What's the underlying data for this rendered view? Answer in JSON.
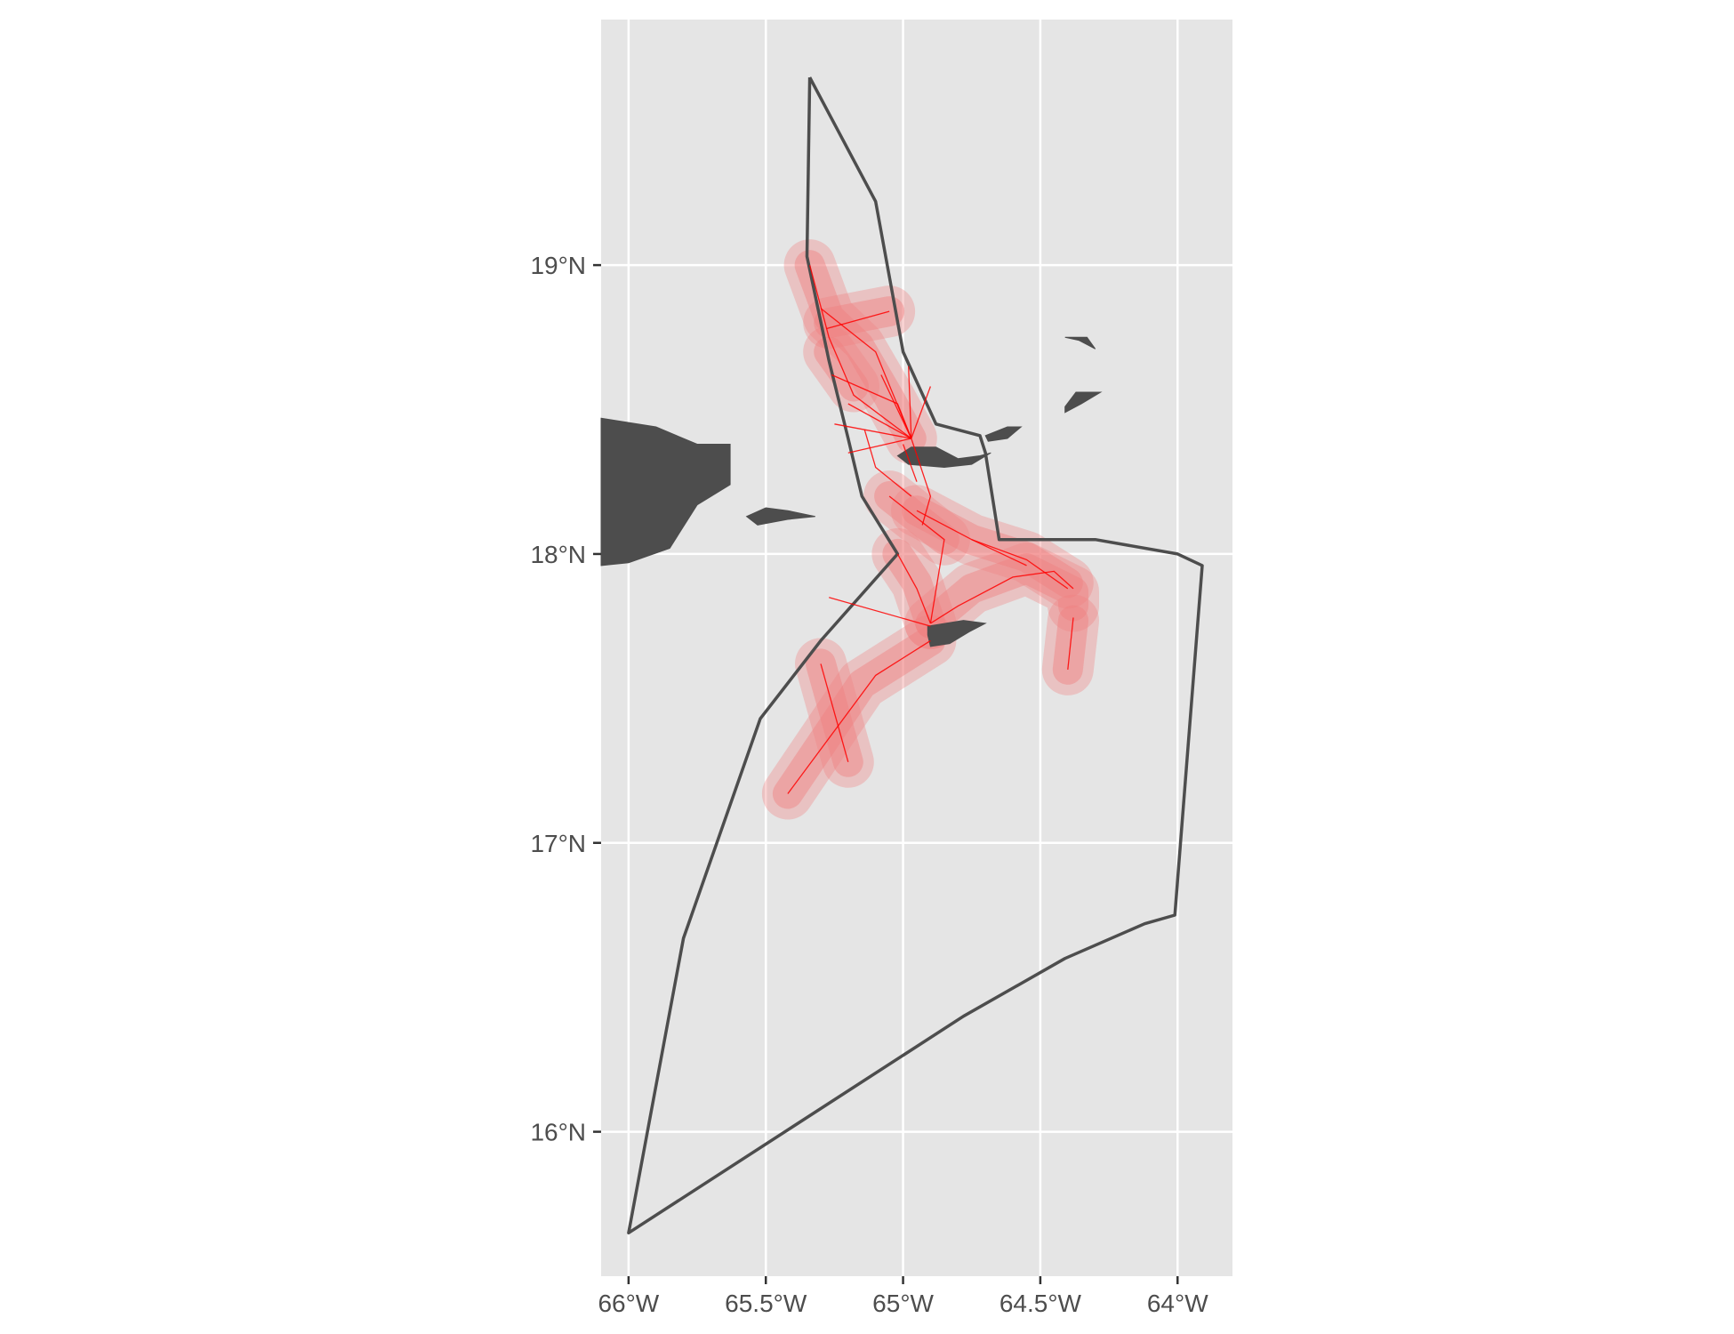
{
  "map": {
    "panel_background": "#e5e5e5",
    "grid_color": "#ffffff",
    "land_color": "#4d4d4d",
    "boundary_color": "#4d4d4d",
    "route_color": "#ff0000",
    "buffer_color": "#f08080",
    "x_ticks": [
      {
        "value": -66.0,
        "label": "66°W"
      },
      {
        "value": -65.5,
        "label": "65.5°W"
      },
      {
        "value": -65.0,
        "label": "65°W"
      },
      {
        "value": -64.5,
        "label": "64.5°W"
      },
      {
        "value": -64.0,
        "label": "64°W"
      }
    ],
    "y_ticks": [
      {
        "value": 16,
        "label": "16°N"
      },
      {
        "value": 17,
        "label": "17°N"
      },
      {
        "value": 18,
        "label": "18°N"
      },
      {
        "value": 19,
        "label": "19°N"
      }
    ],
    "xlim": [
      -66.1,
      -63.8
    ],
    "ylim": [
      15.5,
      19.85
    ],
    "boundary": [
      [
        -65.34,
        19.65
      ],
      [
        -65.1,
        19.22
      ],
      [
        -65.0,
        18.7
      ],
      [
        -64.88,
        18.45
      ],
      [
        -64.72,
        18.41
      ],
      [
        -64.7,
        18.35
      ],
      [
        -64.65,
        18.05
      ],
      [
        -64.3,
        18.05
      ],
      [
        -64.0,
        18.0
      ],
      [
        -63.91,
        17.96
      ],
      [
        -64.01,
        16.75
      ],
      [
        -64.12,
        16.72
      ],
      [
        -64.41,
        16.6
      ],
      [
        -64.78,
        16.4
      ],
      [
        -66.0,
        15.65
      ],
      [
        -65.8,
        16.67
      ],
      [
        -65.52,
        17.43
      ],
      [
        -65.3,
        17.7
      ],
      [
        -65.02,
        18.0
      ],
      [
        -65.15,
        18.2
      ],
      [
        -65.2,
        18.4
      ],
      [
        -65.27,
        18.67
      ],
      [
        -65.35,
        19.03
      ],
      [
        -65.34,
        19.65
      ]
    ],
    "land": [
      [
        [
          -66.1,
          18.47
        ],
        [
          -65.9,
          18.44
        ],
        [
          -65.75,
          18.38
        ],
        [
          -65.63,
          18.38
        ],
        [
          -65.63,
          18.24
        ],
        [
          -65.75,
          18.17
        ],
        [
          -65.85,
          18.02
        ],
        [
          -66.0,
          17.97
        ],
        [
          -66.1,
          17.96
        ]
      ],
      [
        [
          -65.57,
          18.13
        ],
        [
          -65.5,
          18.16
        ],
        [
          -65.42,
          18.15
        ],
        [
          -65.32,
          18.13
        ],
        [
          -65.42,
          18.12
        ],
        [
          -65.53,
          18.1
        ]
      ],
      [
        [
          -64.97,
          18.37
        ],
        [
          -64.88,
          18.37
        ],
        [
          -64.8,
          18.33
        ],
        [
          -64.72,
          18.34
        ],
        [
          -64.68,
          18.35
        ],
        [
          -64.75,
          18.31
        ],
        [
          -64.85,
          18.3
        ],
        [
          -64.98,
          18.31
        ],
        [
          -65.02,
          18.34
        ]
      ],
      [
        [
          -64.91,
          17.75
        ],
        [
          -64.78,
          17.77
        ],
        [
          -64.7,
          17.76
        ],
        [
          -64.76,
          17.73
        ],
        [
          -64.83,
          17.69
        ],
        [
          -64.9,
          17.68
        ],
        [
          -64.91,
          17.72
        ]
      ],
      [
        [
          -64.7,
          18.41
        ],
        [
          -64.62,
          18.44
        ],
        [
          -64.57,
          18.44
        ],
        [
          -64.62,
          18.4
        ],
        [
          -64.69,
          18.39
        ]
      ],
      [
        [
          -64.41,
          18.51
        ],
        [
          -64.37,
          18.56
        ],
        [
          -64.28,
          18.56
        ],
        [
          -64.35,
          18.52
        ],
        [
          -64.41,
          18.49
        ]
      ],
      [
        [
          -64.41,
          18.75
        ],
        [
          -64.33,
          18.75
        ],
        [
          -64.3,
          18.71
        ],
        [
          -64.36,
          18.74
        ]
      ]
    ],
    "buffers": [
      [
        [
          -65.34,
          19.0
        ],
        [
          -65.27,
          18.82
        ],
        [
          -65.16,
          18.72
        ],
        [
          -65.05,
          18.54
        ],
        [
          -64.97,
          18.4
        ]
      ],
      [
        [
          -65.27,
          18.8
        ],
        [
          -65.05,
          18.84
        ]
      ],
      [
        [
          -65.27,
          18.7
        ],
        [
          -65.18,
          18.58
        ]
      ],
      [
        [
          -65.02,
          18.0
        ],
        [
          -64.95,
          17.9
        ],
        [
          -64.9,
          17.76
        ]
      ],
      [
        [
          -64.9,
          17.76
        ],
        [
          -64.75,
          17.88
        ],
        [
          -64.55,
          17.95
        ],
        [
          -64.38,
          17.87
        ],
        [
          -64.38,
          17.82
        ]
      ],
      [
        [
          -64.95,
          18.15
        ],
        [
          -64.75,
          18.05
        ],
        [
          -64.55,
          17.99
        ],
        [
          -64.4,
          17.9
        ]
      ],
      [
        [
          -65.05,
          18.2
        ],
        [
          -64.85,
          18.05
        ]
      ],
      [
        [
          -64.9,
          17.7
        ],
        [
          -65.15,
          17.55
        ],
        [
          -65.42,
          17.17
        ]
      ],
      [
        [
          -65.3,
          17.62
        ],
        [
          -65.2,
          17.28
        ]
      ],
      [
        [
          -64.38,
          17.77
        ],
        [
          -64.4,
          17.6
        ]
      ]
    ],
    "routes": [
      [
        [
          -65.34,
          19.0
        ],
        [
          -65.27,
          18.75
        ],
        [
          -65.18,
          18.55
        ],
        [
          -64.97,
          18.4
        ]
      ],
      [
        [
          -65.28,
          18.78
        ],
        [
          -65.05,
          18.84
        ]
      ],
      [
        [
          -65.3,
          18.85
        ],
        [
          -65.1,
          18.7
        ],
        [
          -64.97,
          18.4
        ]
      ],
      [
        [
          -65.26,
          18.62
        ],
        [
          -65.02,
          18.52
        ],
        [
          -64.97,
          18.4
        ]
      ],
      [
        [
          -65.2,
          18.52
        ],
        [
          -64.97,
          18.4
        ]
      ],
      [
        [
          -65.25,
          18.45
        ],
        [
          -64.97,
          18.4
        ]
      ],
      [
        [
          -65.2,
          18.35
        ],
        [
          -64.97,
          18.4
        ]
      ],
      [
        [
          -65.08,
          18.62
        ],
        [
          -64.97,
          18.4
        ]
      ],
      [
        [
          -64.98,
          18.65
        ],
        [
          -64.97,
          18.4
        ]
      ],
      [
        [
          -64.9,
          18.58
        ],
        [
          -64.97,
          18.4
        ]
      ],
      [
        [
          -64.97,
          18.4
        ],
        [
          -64.9,
          18.2
        ],
        [
          -64.93,
          18.1
        ]
      ],
      [
        [
          -65.0,
          18.38
        ],
        [
          -64.95,
          18.25
        ]
      ],
      [
        [
          -65.14,
          18.43
        ],
        [
          -65.1,
          18.3
        ],
        [
          -64.97,
          18.2
        ]
      ],
      [
        [
          -65.02,
          18.0
        ],
        [
          -64.95,
          17.88
        ],
        [
          -64.9,
          17.76
        ]
      ],
      [
        [
          -65.05,
          18.2
        ],
        [
          -64.85,
          18.05
        ],
        [
          -64.9,
          17.76
        ]
      ],
      [
        [
          -64.9,
          17.76
        ],
        [
          -64.8,
          17.82
        ],
        [
          -64.6,
          17.92
        ],
        [
          -64.45,
          17.94
        ],
        [
          -64.38,
          17.88
        ]
      ],
      [
        [
          -64.95,
          18.15
        ],
        [
          -64.75,
          18.05
        ],
        [
          -64.55,
          17.98
        ],
        [
          -64.4,
          17.88
        ]
      ],
      [
        [
          -64.75,
          18.05
        ],
        [
          -64.55,
          17.96
        ]
      ],
      [
        [
          -64.9,
          17.7
        ],
        [
          -65.1,
          17.58
        ],
        [
          -65.42,
          17.17
        ]
      ],
      [
        [
          -65.3,
          17.62
        ],
        [
          -65.2,
          17.28
        ]
      ],
      [
        [
          -65.27,
          17.85
        ],
        [
          -64.9,
          17.75
        ]
      ],
      [
        [
          -64.38,
          17.78
        ],
        [
          -64.4,
          17.6
        ]
      ]
    ]
  }
}
